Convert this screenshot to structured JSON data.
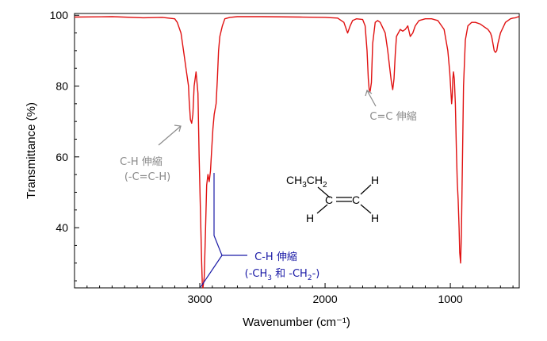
{
  "chart_data": {
    "type": "line",
    "xlabel": "Wavenumber (cm⁻¹)",
    "ylabel": "Transmittance (%)",
    "xlim": [
      4000,
      450
    ],
    "ylim": [
      23,
      100.5
    ],
    "x_reversed": true,
    "x_ticks": [
      3000,
      2000,
      1000
    ],
    "x_tick_labels": [
      "3000",
      "2000",
      "1000"
    ],
    "y_ticks": [
      40,
      60,
      80,
      100
    ],
    "y_tick_labels": [
      "40",
      "60",
      "80",
      "100"
    ],
    "grid": false,
    "legend": "none",
    "series": [
      {
        "color": "#e01010",
        "x": [
          4000,
          3700,
          3450,
          3300,
          3200,
          3180,
          3150,
          3130,
          3110,
          3090,
          3085,
          3075,
          3065,
          3055,
          3045,
          3030,
          3015,
          3005,
          2995,
          2985,
          2980,
          2975,
          2965,
          2955,
          2945,
          2935,
          2925,
          2915,
          2905,
          2895,
          2885,
          2870,
          2860,
          2850,
          2840,
          2820,
          2800,
          2760,
          2700,
          2500,
          2200,
          2000,
          1900,
          1850,
          1830,
          1820,
          1810,
          1800,
          1780,
          1750,
          1700,
          1680,
          1665,
          1655,
          1648,
          1640,
          1630,
          1620,
          1600,
          1580,
          1560,
          1520,
          1500,
          1480,
          1470,
          1460,
          1450,
          1440,
          1430,
          1400,
          1380,
          1360,
          1340,
          1320,
          1300,
          1280,
          1250,
          1200,
          1150,
          1100,
          1050,
          1020,
          1005,
          995,
          990,
          985,
          980,
          975,
          968,
          960,
          952,
          945,
          938,
          930,
          925,
          918,
          912,
          905,
          895,
          880,
          860,
          830,
          800,
          760,
          720,
          700,
          690,
          680,
          670,
          660,
          650,
          640,
          630,
          620,
          600,
          560,
          520,
          500,
          480,
          465,
          455,
          450
        ],
        "y": [
          99.5,
          99.6,
          99.3,
          99.4,
          99.0,
          98.0,
          95.0,
          90.0,
          85.0,
          80.0,
          76.0,
          70.5,
          69.5,
          72.0,
          80.0,
          84.0,
          78.0,
          60.0,
          45.0,
          30.0,
          24.0,
          23.0,
          26.0,
          38.0,
          52.0,
          55.0,
          53.0,
          56.0,
          62.0,
          68.0,
          72.0,
          75.0,
          82.0,
          90.0,
          94.0,
          97.0,
          99.0,
          99.4,
          99.6,
          99.6,
          99.5,
          99.4,
          99.2,
          98.0,
          96.0,
          95.0,
          96.0,
          97.0,
          98.5,
          99.0,
          98.8,
          97.0,
          90.0,
          82.0,
          79.0,
          78.5,
          81.0,
          92.0,
          98.0,
          98.5,
          98.0,
          95.0,
          90.0,
          84.0,
          81.0,
          79.0,
          82.0,
          89.0,
          94.0,
          96.0,
          95.5,
          96.0,
          97.0,
          94.0,
          95.0,
          97.0,
          98.5,
          99.0,
          99.0,
          98.5,
          96.0,
          90.0,
          84.0,
          78.0,
          75.0,
          77.0,
          82.0,
          84.0,
          82.0,
          75.0,
          62.0,
          53.0,
          48.0,
          40.0,
          33.0,
          30.0,
          38.0,
          55.0,
          80.0,
          93.0,
          97.0,
          98.0,
          98.0,
          97.5,
          96.5,
          96.0,
          95.5,
          95.0,
          94.0,
          92.0,
          90.0,
          89.5,
          90.0,
          92.0,
          95.0,
          98.0,
          99.0,
          99.2,
          99.3,
          99.5,
          99.6,
          99.4
        ]
      }
    ]
  },
  "annotations": {
    "ch_alkene_line1": "C-H 伸縮",
    "ch_alkene_line2": "(-C=C-H)",
    "cc_label": "C=C 伸縮",
    "ch_alkyl_line1": "C-H 伸縮",
    "ch_alkyl_line2_a": "(-CH",
    "ch_alkyl_sub_a": "3",
    "ch_alkyl_line2_b": " 和 -CH",
    "ch_alkyl_sub_b": "2",
    "ch_alkyl_line2_c": "-)"
  },
  "molecule": {
    "group_a": "CH",
    "group_sub_a": "3",
    "group_b": "CH",
    "group_sub_b": "2",
    "c_left": "C",
    "c_right": "C",
    "h_top_right": "H",
    "h_bottom_left": "H",
    "h_bottom_right": "H"
  },
  "colors": {
    "spectrum": "#e01010",
    "annotation_gray": "#8a8a8a",
    "annotation_blue": "#1a1aa6"
  }
}
